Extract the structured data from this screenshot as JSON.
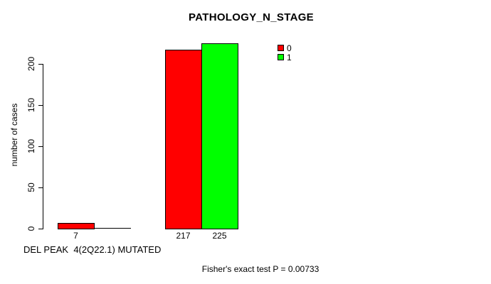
{
  "chart_data": {
    "type": "bar",
    "title": "PATHOLOGY_N_STAGE",
    "ylabel": "number of cases",
    "xlabel": "DEL PEAK  4(2Q22.1) MUTATED",
    "footnote": "Fisher's exact test P = 0.00733",
    "yticks": [
      0,
      50,
      100,
      150,
      200
    ],
    "ylim": [
      0,
      230
    ],
    "grid": false,
    "legend_position": "top-right",
    "groups": [
      "group-1",
      "group-2"
    ],
    "series": [
      {
        "name": "0",
        "color": "#FF0000",
        "values": [
          7,
          217
        ]
      },
      {
        "name": "1",
        "color": "#00FF00",
        "values": [
          0,
          225
        ]
      }
    ],
    "bar_labels": [
      [
        "7",
        ""
      ],
      [
        "217",
        "225"
      ]
    ],
    "legend": {
      "entries": [
        {
          "label": "0",
          "color": "#FF0000"
        },
        {
          "label": "1",
          "color": "#00FF00"
        }
      ]
    },
    "colors": {
      "background": "#FFFFFF",
      "text": "#000000",
      "bar_border": "#000000"
    }
  }
}
